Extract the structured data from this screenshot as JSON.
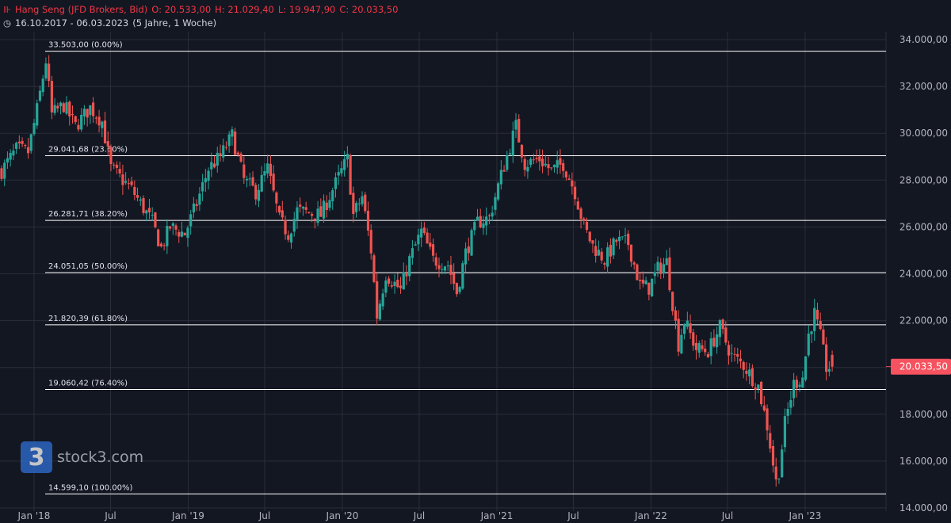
{
  "header": {
    "symbol_icon": "candlestick-icon",
    "instrument": "Hang Seng (JFD Brokers, Bid)",
    "open": "O: 20.533,00",
    "high": "H: 21.029,40",
    "low": "L: 19.947,90",
    "close": "C: 20.033,50",
    "clock_icon": "clock-icon",
    "date_range": "16.10.2017 - 06.03.2023",
    "period": "(5 Jahre, 1 Woche)"
  },
  "brand": {
    "logo_text": "3",
    "name": "stock3.com"
  },
  "colors": {
    "background": "#131722",
    "up": "#26a69a",
    "down": "#ef5350",
    "grid": "#2a2e39",
    "text": "#d1d4dc",
    "fib": "#ffffff"
  },
  "chart_data": {
    "type": "candlestick",
    "y_axis": {
      "min": 14000,
      "max": 34000,
      "position": "right",
      "ticks": [
        34000,
        32000,
        30000,
        28000,
        26000,
        24000,
        22000,
        20000,
        18000,
        16000,
        14000
      ],
      "tick_labels": [
        "34.000,00",
        "32.000,00",
        "30.000,00",
        "28.000,00",
        "26.000,00",
        "24.000,00",
        "22.000,00",
        "20.000,00",
        "18.000,00",
        "16.000,00",
        "14.000,00"
      ]
    },
    "x_axis": {
      "start": "2017-10-16",
      "end": "2023-03-06",
      "tick_dates": [
        "2018-01-01",
        "2018-07-01",
        "2019-01-01",
        "2019-07-01",
        "2020-01-01",
        "2020-07-01",
        "2021-01-01",
        "2021-07-01",
        "2022-01-01",
        "2022-07-01",
        "2023-01-01"
      ],
      "tick_labels": [
        "Jan '18",
        "Jul",
        "Jan '19",
        "Jul",
        "Jan '20",
        "Jul",
        "Jan '21",
        "Jul",
        "Jan '22",
        "Jul",
        "Jan '23"
      ]
    },
    "grid": true,
    "last_price": {
      "value": 20033.5,
      "label": "20.033,50"
    },
    "fibonacci_levels": [
      {
        "value": 33503.0,
        "label": "33.503,00 (0.00%)"
      },
      {
        "value": 29041.68,
        "label": "29.041,68 (23.60%)"
      },
      {
        "value": 26281.71,
        "label": "26.281,71 (38.20%)"
      },
      {
        "value": 24051.05,
        "label": "24.051,05 (50.00%)"
      },
      {
        "value": 21820.39,
        "label": "21.820,39 (61.80%)"
      },
      {
        "value": 19060.42,
        "label": "19.060,42 (76.40%)"
      },
      {
        "value": 14599.1,
        "label": "14.599,10 (100.00%)"
      }
    ],
    "close_path": [
      [
        "2017-10-16",
        28400
      ],
      [
        "2017-11-20",
        29300
      ],
      [
        "2017-12-18",
        29200
      ],
      [
        "2018-01-08",
        31000
      ],
      [
        "2018-01-29",
        33100
      ],
      [
        "2018-02-12",
        30800
      ],
      [
        "2018-03-12",
        31200
      ],
      [
        "2018-04-09",
        30300
      ],
      [
        "2018-05-14",
        31100
      ],
      [
        "2018-06-11",
        30500
      ],
      [
        "2018-07-02",
        28500
      ],
      [
        "2018-07-30",
        28000
      ],
      [
        "2018-08-20",
        27600
      ],
      [
        "2018-09-10",
        27000
      ],
      [
        "2018-10-08",
        26200
      ],
      [
        "2018-10-29",
        25100
      ],
      [
        "2018-11-19",
        26000
      ],
      [
        "2018-12-24",
        25700
      ],
      [
        "2019-01-21",
        27000
      ],
      [
        "2019-02-18",
        28500
      ],
      [
        "2019-03-18",
        29000
      ],
      [
        "2019-04-15",
        29900
      ],
      [
        "2019-05-13",
        28000
      ],
      [
        "2019-06-10",
        27500
      ],
      [
        "2019-07-08",
        28500
      ],
      [
        "2019-08-05",
        26300
      ],
      [
        "2019-08-26",
        25700
      ],
      [
        "2019-09-16",
        26700
      ],
      [
        "2019-10-14",
        26600
      ],
      [
        "2019-11-11",
        26500
      ],
      [
        "2019-12-09",
        27600
      ],
      [
        "2020-01-13",
        28900
      ],
      [
        "2020-01-27",
        26500
      ],
      [
        "2020-02-17",
        27300
      ],
      [
        "2020-03-09",
        25000
      ],
      [
        "2020-03-23",
        22200
      ],
      [
        "2020-04-13",
        24000
      ],
      [
        "2020-05-18",
        23300
      ],
      [
        "2020-06-08",
        24600
      ],
      [
        "2020-07-06",
        25800
      ],
      [
        "2020-08-03",
        24600
      ],
      [
        "2020-09-07",
        24400
      ],
      [
        "2020-09-28",
        23200
      ],
      [
        "2020-10-19",
        24900
      ],
      [
        "2020-11-16",
        26200
      ],
      [
        "2020-12-14",
        26400
      ],
      [
        "2021-01-11",
        28200
      ],
      [
        "2021-02-15",
        30300
      ],
      [
        "2021-03-08",
        28700
      ],
      [
        "2021-04-12",
        28900
      ],
      [
        "2021-05-10",
        28400
      ],
      [
        "2021-06-07",
        28700
      ],
      [
        "2021-07-05",
        27500
      ],
      [
        "2021-07-26",
        26000
      ],
      [
        "2021-08-16",
        25200
      ],
      [
        "2021-09-13",
        24600
      ],
      [
        "2021-10-11",
        25400
      ],
      [
        "2021-11-08",
        25300
      ],
      [
        "2021-12-06",
        23500
      ],
      [
        "2021-12-27",
        23400
      ],
      [
        "2022-01-17",
        24200
      ],
      [
        "2022-02-07",
        24500
      ],
      [
        "2022-03-07",
        21000
      ],
      [
        "2022-03-21",
        22000
      ],
      [
        "2022-04-18",
        20800
      ],
      [
        "2022-05-16",
        20700
      ],
      [
        "2022-06-13",
        21700
      ],
      [
        "2022-07-11",
        20500
      ],
      [
        "2022-08-08",
        20100
      ],
      [
        "2022-09-12",
        19200
      ],
      [
        "2022-10-03",
        17500
      ],
      [
        "2022-10-24",
        15100
      ],
      [
        "2022-10-31",
        15600
      ],
      [
        "2022-11-14",
        17600
      ],
      [
        "2022-12-05",
        19300
      ],
      [
        "2022-12-26",
        19600
      ],
      [
        "2023-01-09",
        21400
      ],
      [
        "2023-01-23",
        22300
      ],
      [
        "2023-02-06",
        21300
      ],
      [
        "2023-02-20",
        20000
      ],
      [
        "2023-03-06",
        20033.5
      ]
    ]
  }
}
